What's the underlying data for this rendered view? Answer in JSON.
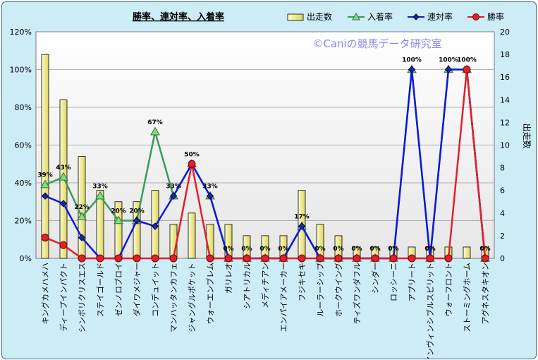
{
  "chart_data": {
    "type": "bar+line",
    "title": "勝率、連対率、入着率",
    "watermark": "©Caniの競馬データ研究室",
    "y_left_label": "",
    "y_right_label": "出走数",
    "y_left_ticks": [
      "0%",
      "20%",
      "40%",
      "60%",
      "80%",
      "100%",
      "120%"
    ],
    "y_left_lim": [
      0,
      120
    ],
    "y_right_ticks": [
      "0",
      "2",
      "4",
      "6",
      "8",
      "10",
      "12",
      "14",
      "16",
      "18",
      "20"
    ],
    "y_right_lim": [
      0,
      20
    ],
    "categories": [
      "キングカメハメハ",
      "ディープインパクト",
      "シンボリクリスエス",
      "ステイゴールド",
      "ゼンノロブロイ",
      "ダイワメジャー",
      "コンデュイット",
      "マンハッタンカフェ",
      "ジャングルポケット",
      "ウォーエンブレム",
      "ガリレオ",
      "シアトリカル",
      "メディチアン",
      "エンパイアメーカー",
      "フジキセキ",
      "ルーラーシップ",
      "ホークウイング",
      "ティズワンダフル",
      "シンダー",
      "ロッシーニ",
      "アプリート",
      "インヴィンシブルスピリット",
      "ウォーフロント",
      "ストーミングホーム",
      "アグネスタキオン"
    ],
    "series": [
      {
        "name": "出走数",
        "type": "bar",
        "axis": "right",
        "color": "#f0eea0",
        "values": [
          18,
          14,
          9,
          6,
          5,
          5,
          6,
          3,
          4,
          3,
          3,
          2,
          2,
          2,
          6,
          3,
          2,
          1,
          1,
          1,
          1,
          1,
          1,
          1,
          1
        ]
      },
      {
        "name": "入着率",
        "type": "line",
        "axis": "left",
        "color": "#3a9a5a",
        "values": [
          39,
          43,
          22,
          33,
          20,
          20,
          67,
          33,
          50,
          33,
          0,
          0,
          0,
          0,
          17,
          0,
          0,
          0,
          0,
          0,
          100,
          0,
          100,
          100,
          0
        ]
      },
      {
        "name": "連対率",
        "type": "line",
        "axis": "left",
        "color": "#0a1ad8",
        "values": [
          33,
          29,
          11,
          0,
          0,
          20,
          17,
          33,
          50,
          33,
          0,
          0,
          0,
          0,
          17,
          0,
          0,
          0,
          0,
          0,
          100,
          0,
          100,
          100,
          0
        ]
      },
      {
        "name": "勝率",
        "type": "line",
        "axis": "left",
        "color": "#e0202a",
        "values": [
          11,
          7,
          0,
          0,
          0,
          0,
          0,
          0,
          50,
          0,
          0,
          0,
          0,
          0,
          0,
          0,
          0,
          0,
          0,
          0,
          0,
          0,
          0,
          100,
          0
        ]
      }
    ],
    "data_labels": [
      "39%",
      "43%",
      "22%",
      "33%",
      "20%",
      "20%",
      "67%",
      "33%",
      "50%",
      "33%",
      "0%",
      "0%",
      "0%",
      "0%",
      "17%",
      "0%",
      "0%",
      "0%",
      "0%",
      "0%",
      "100%",
      "0%",
      "100%",
      "100%",
      "0%"
    ],
    "legend": [
      "出走数",
      "入着率",
      "連対率",
      "勝率"
    ],
    "legend_position": "top-right",
    "grid": "horizontal"
  }
}
